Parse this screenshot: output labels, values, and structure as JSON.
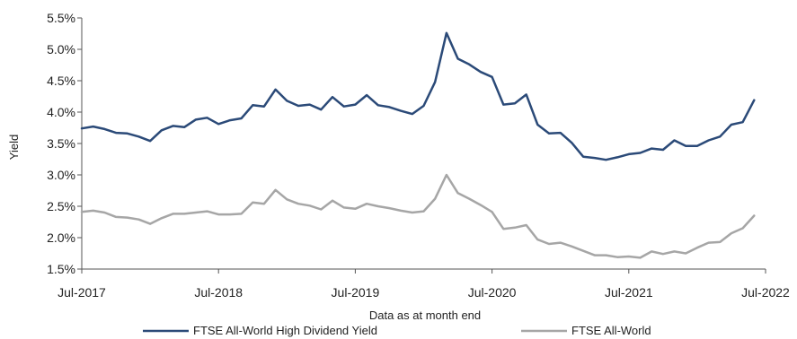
{
  "chart_data": {
    "type": "line",
    "title": "",
    "ylabel": "Yield",
    "xlabel": "Data as at month end",
    "ylim": [
      0.015,
      0.055
    ],
    "y_ticks": [
      "1.5%",
      "2.0%",
      "2.5%",
      "3.0%",
      "3.5%",
      "4.0%",
      "4.5%",
      "5.0%",
      "5.5%"
    ],
    "x_ticks": [
      "Jul-2017",
      "Jul-2018",
      "Jul-2019",
      "Jul-2020",
      "Jul-2021",
      "Jul-2022"
    ],
    "x_range": [
      "2017-07",
      "2022-07"
    ],
    "grid": false,
    "legend_position": "bottom",
    "x": [
      "2017-07",
      "2017-08",
      "2017-09",
      "2017-10",
      "2017-11",
      "2017-12",
      "2018-01",
      "2018-02",
      "2018-03",
      "2018-04",
      "2018-05",
      "2018-06",
      "2018-07",
      "2018-08",
      "2018-09",
      "2018-10",
      "2018-11",
      "2018-12",
      "2019-01",
      "2019-02",
      "2019-03",
      "2019-04",
      "2019-05",
      "2019-06",
      "2019-07",
      "2019-08",
      "2019-09",
      "2019-10",
      "2019-11",
      "2019-12",
      "2020-01",
      "2020-02",
      "2020-03",
      "2020-04",
      "2020-05",
      "2020-06",
      "2020-07",
      "2020-08",
      "2020-09",
      "2020-10",
      "2020-11",
      "2020-12",
      "2021-01",
      "2021-02",
      "2021-03",
      "2021-04",
      "2021-05",
      "2021-06",
      "2021-07",
      "2021-08",
      "2021-09",
      "2021-10",
      "2021-11",
      "2021-12",
      "2022-01",
      "2022-02",
      "2022-03",
      "2022-04",
      "2022-05",
      "2022-06"
    ],
    "series": [
      {
        "name": "FTSE All-World High Dividend Yield",
        "color": "#2b4a78",
        "values": [
          0.0374,
          0.0377,
          0.0373,
          0.0367,
          0.0366,
          0.0361,
          0.0354,
          0.0371,
          0.0378,
          0.0376,
          0.0388,
          0.0391,
          0.0381,
          0.0387,
          0.039,
          0.0411,
          0.0409,
          0.0436,
          0.0418,
          0.041,
          0.0412,
          0.0404,
          0.0424,
          0.0409,
          0.0412,
          0.0427,
          0.0411,
          0.0408,
          0.0402,
          0.0397,
          0.041,
          0.0448,
          0.0526,
          0.0485,
          0.0476,
          0.0464,
          0.0456,
          0.0412,
          0.0414,
          0.0428,
          0.038,
          0.0366,
          0.0367,
          0.0351,
          0.0329,
          0.0327,
          0.0324,
          0.0328,
          0.0333,
          0.0335,
          0.0342,
          0.034,
          0.0355,
          0.0346,
          0.0346,
          0.0355,
          0.0361,
          0.038,
          0.0384,
          0.0419
        ]
      },
      {
        "name": "FTSE All-World",
        "color": "#a6a6a6",
        "values": [
          0.0241,
          0.0243,
          0.024,
          0.0233,
          0.0232,
          0.0229,
          0.0222,
          0.0231,
          0.0238,
          0.0238,
          0.024,
          0.0242,
          0.0237,
          0.0237,
          0.0238,
          0.0256,
          0.0254,
          0.0276,
          0.0261,
          0.0254,
          0.0251,
          0.0245,
          0.0259,
          0.0248,
          0.0246,
          0.0254,
          0.025,
          0.0247,
          0.0243,
          0.024,
          0.0242,
          0.0262,
          0.03,
          0.0271,
          0.0262,
          0.0252,
          0.0241,
          0.0214,
          0.0216,
          0.022,
          0.0197,
          0.019,
          0.0192,
          0.0186,
          0.0179,
          0.0172,
          0.0172,
          0.0169,
          0.017,
          0.0168,
          0.0178,
          0.0174,
          0.0178,
          0.0175,
          0.0184,
          0.0192,
          0.0193,
          0.0207,
          0.0215,
          0.0235
        ]
      }
    ]
  }
}
